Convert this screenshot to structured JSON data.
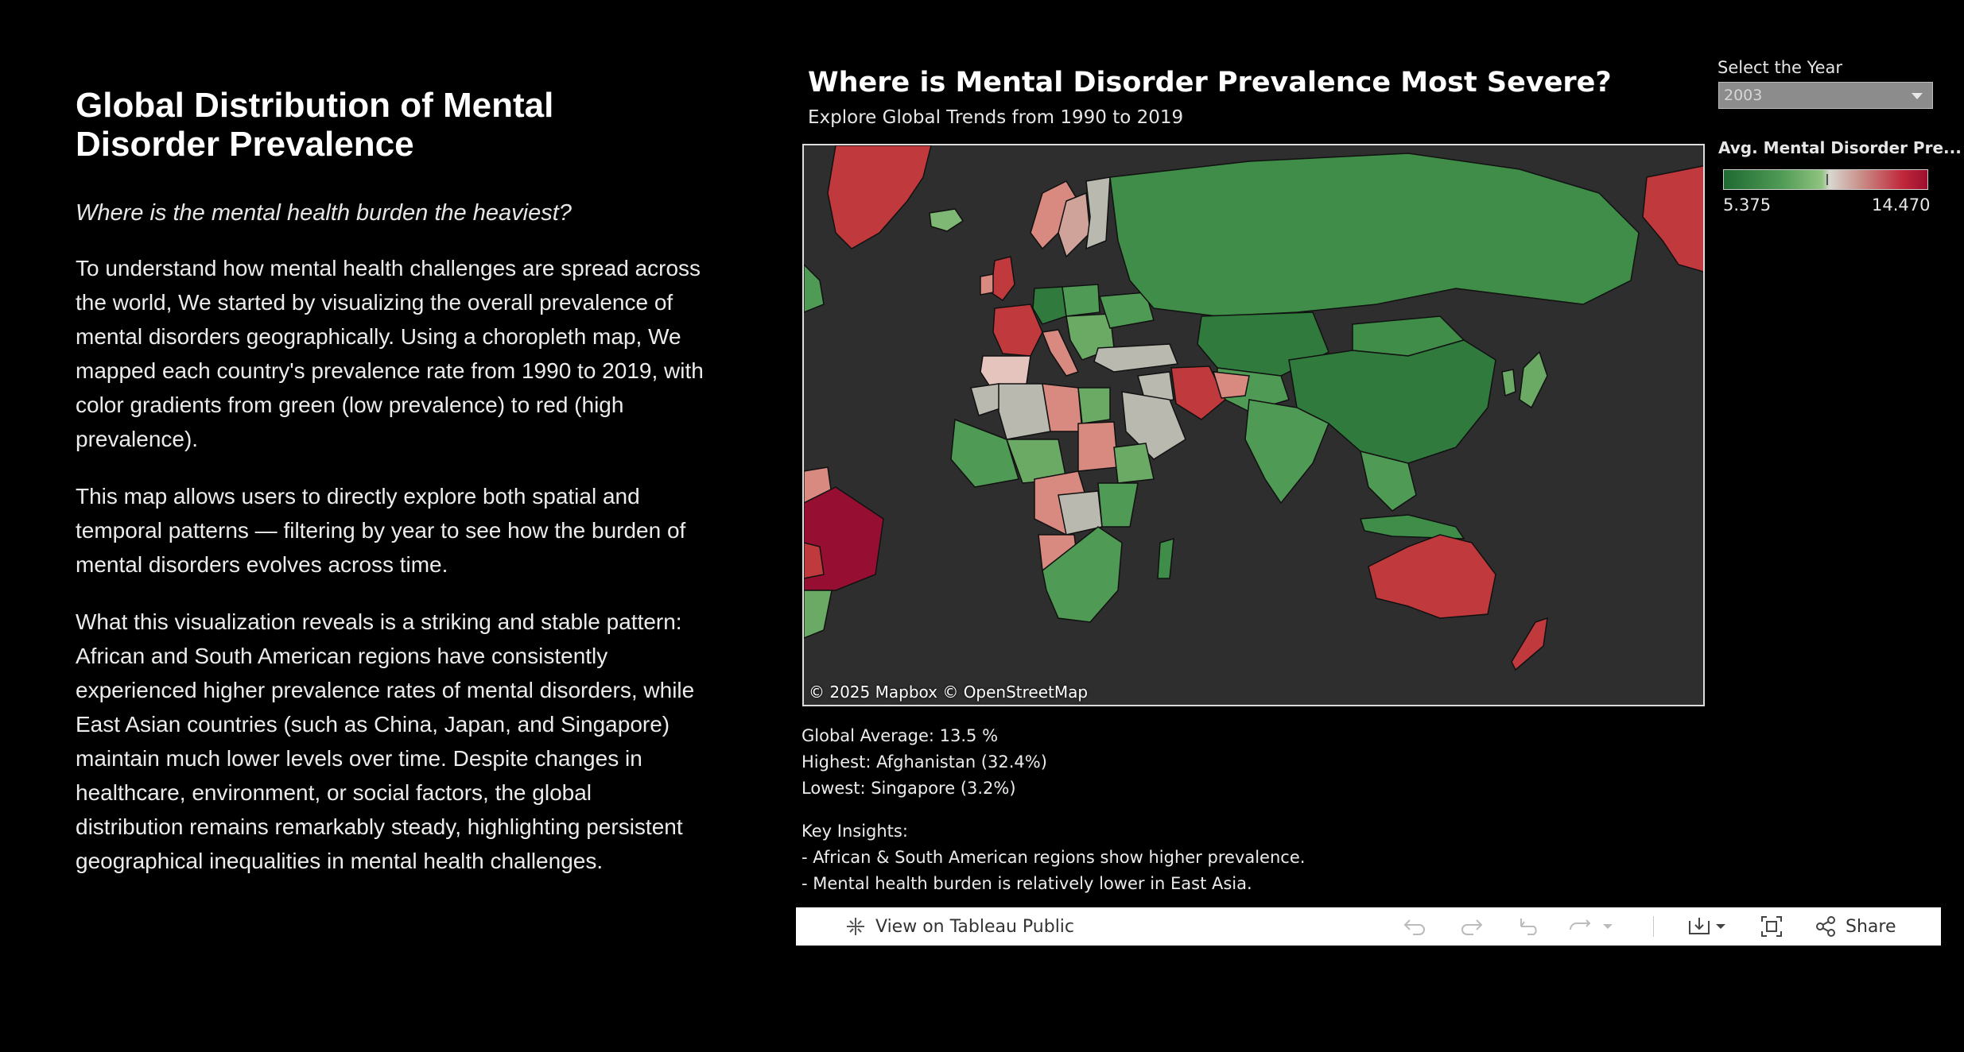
{
  "article": {
    "title": "Global Distribution of Mental Disorder Prevalence",
    "question": "Where is the mental health burden the heaviest?",
    "paragraphs": [
      "To understand how mental health challenges are spread across the world, We started by visualizing the overall prevalence of mental disorders geographically. Using a choropleth map, We mapped each country's prevalence rate from 1990 to 2019, with color gradients from green (low prevalence) to red (high prevalence).",
      "This map allows users to directly explore both spatial and temporal patterns — filtering by year to see how the burden of mental disorders evolves across time.",
      "What this visualization reveals is a striking and stable pattern: African and South American regions have consistently experienced higher prevalence rates of mental disorders, while East Asian countries (such as China, Japan, and Singapore) maintain much lower levels over time. Despite changes in healthcare, environment, or social factors, the global distribution remains remarkably steady, highlighting persistent geographical inequalities in mental health challenges."
    ]
  },
  "dashboard": {
    "title": "Where is Mental Disorder Prevalence Most Severe?",
    "subtitle": "Explore Global Trends from 1990 to 2019",
    "map_credit": "© 2025 Mapbox  © OpenStreetMap",
    "year_filter": {
      "label": "Select the Year",
      "selected": "2003"
    },
    "legend": {
      "title": "Avg. Mental Disorder Pre...",
      "min": "5.375",
      "max": "14.470",
      "colors": {
        "low": "#1e6a32",
        "mid": "#d7d7d0",
        "high": "#9a0f2e"
      }
    },
    "stats": {
      "global_average": "Global Average: 13.5 %",
      "highest": "Highest: Afghanistan (32.4%)",
      "lowest": "Lowest: Singapore (3.2%)",
      "insights_heading": "Key Insights:",
      "insights": [
        "- African & South American regions show higher prevalence.",
        "- Mental health burden is relatively lower in East Asia."
      ]
    },
    "toolbar": {
      "view_label": "View on Tableau Public",
      "share_label": "Share"
    }
  },
  "icons": [
    "tableau-logo-icon",
    "undo-icon",
    "redo-icon",
    "revert-icon",
    "refresh-icon",
    "dropdown-caret-icon",
    "download-icon",
    "fullscreen-icon",
    "share-icon"
  ]
}
